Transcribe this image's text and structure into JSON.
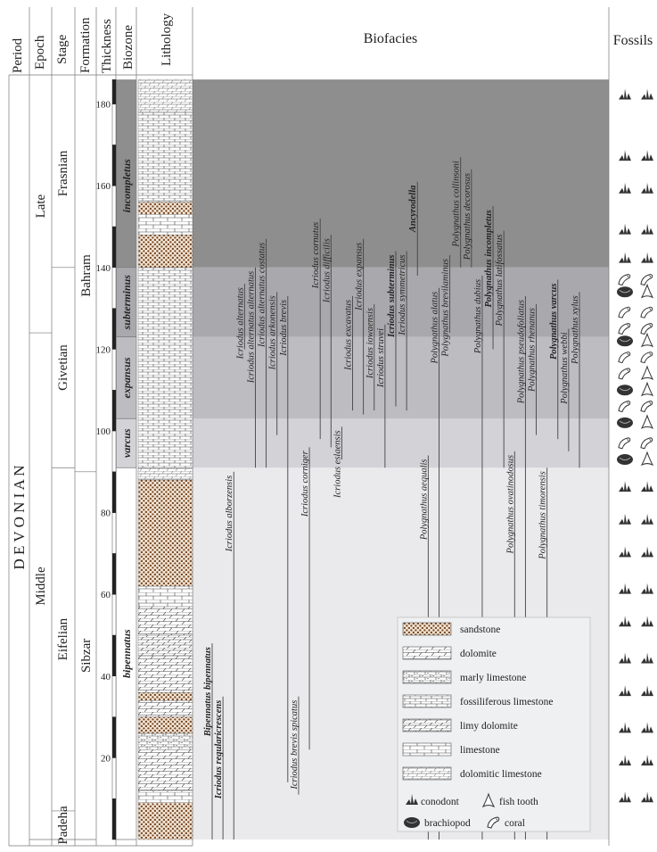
{
  "headers": {
    "period": "Period",
    "epoch": "Epoch",
    "stage": "Stage",
    "formation": "Formation",
    "thickness": "Thickness",
    "biozone": "Biozone",
    "lithology": "Lithology",
    "biofacies": "Biofacies",
    "fossils": "Fossils"
  },
  "period": "D E V O N I A N",
  "epochs": [
    {
      "name": "Late",
      "from": 124,
      "to": 186
    },
    {
      "name": "Middle",
      "from": 0,
      "to": 124
    }
  ],
  "stages": [
    {
      "name": "Frasnian",
      "from": 140,
      "to": 186
    },
    {
      "name": "Givetian",
      "from": 91,
      "to": 140
    },
    {
      "name": "Eifelian",
      "from": 7,
      "to": 91
    },
    {
      "name": "Padeha",
      "from": 0,
      "to": 7
    }
  ],
  "formations": [
    {
      "name": "Bahram",
      "from": 90,
      "to": 186
    },
    {
      "name": "Sibzar",
      "from": 0,
      "to": 90
    }
  ],
  "thickness_ticks": [
    20,
    40,
    60,
    80,
    100,
    120,
    140,
    160,
    180
  ],
  "biozones": [
    {
      "name": "incompletus",
      "from": 140,
      "to": 180
    },
    {
      "name": "subterminus",
      "from": 123,
      "to": 140
    },
    {
      "name": "expansus",
      "from": 103,
      "to": 123
    },
    {
      "name": "varcus",
      "from": 91,
      "to": 103
    },
    {
      "name": "bipennatus",
      "from": 0,
      "to": 91
    }
  ],
  "lithology_units": [
    {
      "type": "sandstone",
      "from": 0,
      "to": 9
    },
    {
      "type": "limestone",
      "from": 9,
      "to": 12
    },
    {
      "type": "dolomite",
      "from": 12,
      "to": 22
    },
    {
      "type": "marly limestone",
      "from": 22,
      "to": 26
    },
    {
      "type": "sandstone",
      "from": 26,
      "to": 30
    },
    {
      "type": "dolomite",
      "from": 30,
      "to": 34
    },
    {
      "type": "sandstone",
      "from": 34,
      "to": 36
    },
    {
      "type": "dolomite",
      "from": 36,
      "to": 45
    },
    {
      "type": "limy dolomite",
      "from": 45,
      "to": 50
    },
    {
      "type": "dolomite",
      "from": 50,
      "to": 57
    },
    {
      "type": "limestone",
      "from": 57,
      "to": 62
    },
    {
      "type": "sandstone",
      "from": 62,
      "to": 88
    },
    {
      "type": "dolomitic limestone",
      "from": 88,
      "to": 91
    },
    {
      "type": "fossiliferous limestone",
      "from": 91,
      "to": 140
    },
    {
      "type": "sandstone",
      "from": 140,
      "to": 148
    },
    {
      "type": "limestone",
      "from": 148,
      "to": 153
    },
    {
      "type": "sandstone",
      "from": 153,
      "to": 156
    },
    {
      "type": "fossiliferous limestone",
      "from": 156,
      "to": 178
    },
    {
      "type": "dolomitic limestone",
      "from": 178,
      "to": 186
    }
  ],
  "taxa": [
    {
      "name": "Bipennatus bipennatus",
      "from": 0,
      "to": 48,
      "bold": true
    },
    {
      "name": "Icriodus regularicrescens",
      "from": 0,
      "to": 35,
      "bold": true
    },
    {
      "name": "Icriodus alborzensis",
      "from": 0,
      "to": 90
    },
    {
      "name": "Icriodus alternatus",
      "from": 120,
      "to": 136
    },
    {
      "name": "Icriodus alternatus alternatus",
      "from": 91,
      "to": 140
    },
    {
      "name": "Icriodus alternatus costatus",
      "from": 91,
      "to": 147
    },
    {
      "name": "Icriodus arkonensis",
      "from": 99,
      "to": 134
    },
    {
      "name": "Icriodus brevis",
      "from": 14,
      "to": 133
    },
    {
      "name": "Icriodus brevis spicatus",
      "from": 11,
      "to": 35
    },
    {
      "name": "Icriodus corniger",
      "from": 22,
      "to": 96
    },
    {
      "name": "Icriodus cornutus",
      "from": 98,
      "to": 152
    },
    {
      "name": "Icriodus difficilis",
      "from": 96,
      "to": 148
    },
    {
      "name": "Icriodus eslaensis",
      "from": 93,
      "to": 101
    },
    {
      "name": "Icriodus excavatus",
      "from": 105,
      "to": 133
    },
    {
      "name": "Icriodus expansus",
      "from": 104,
      "to": 147
    },
    {
      "name": "Icriodus iowaensis",
      "from": 105,
      "to": 131
    },
    {
      "name": "Icriodus struvei",
      "from": 91,
      "to": 126
    },
    {
      "name": "Icriodus subterminus",
      "from": 106,
      "to": 144,
      "bold": true
    },
    {
      "name": "Icriodus symmetricus",
      "from": 105,
      "to": 144
    },
    {
      "name": "Ancyrodella",
      "from": 138,
      "to": 161,
      "bold": true
    },
    {
      "name": "Polygnathus aequalis",
      "from": 0,
      "to": 94
    },
    {
      "name": "Polygnathus alatus",
      "from": 0,
      "to": 135
    },
    {
      "name": "Polygnathus brevilaminus",
      "from": 124,
      "to": 143
    },
    {
      "name": "Polygnathus collinsoni",
      "from": 140,
      "to": 167
    },
    {
      "name": "Polygnathus decorosus",
      "from": 140,
      "to": 164
    },
    {
      "name": "Polygnathus dubius",
      "from": 0,
      "to": 138
    },
    {
      "name": "Polygnathus incompletus",
      "from": 120,
      "to": 155,
      "bold": true
    },
    {
      "name": "Polygnathus latifossatus",
      "from": 91,
      "to": 149
    },
    {
      "name": "Polygnathus ovatinodosus",
      "from": 0,
      "to": 95
    },
    {
      "name": "Polygnathus pseudofoliatus",
      "from": 0,
      "to": 133
    },
    {
      "name": "Polygnathus rhenanus",
      "from": 99,
      "to": 131
    },
    {
      "name": "Polygnathus timorensis",
      "from": 0,
      "to": 91
    },
    {
      "name": "Polygnathus varcus",
      "from": 98,
      "to": 137,
      "bold": true
    },
    {
      "name": "Polygnathus webbi",
      "from": 95,
      "to": 125
    },
    {
      "name": "Polygnathus xylus",
      "from": 91,
      "to": 134
    }
  ],
  "fossil_rows": [
    {
      "level": 182,
      "types": [
        "conodont",
        "conodont"
      ]
    },
    {
      "level": 167,
      "types": [
        "conodont",
        "conodont"
      ]
    },
    {
      "level": 159,
      "types": [
        "conodont",
        "conodont"
      ]
    },
    {
      "level": 149,
      "types": [
        "conodont",
        "conodont"
      ]
    },
    {
      "level": 142,
      "types": [
        "conodont",
        "conodont"
      ]
    },
    {
      "level": 137,
      "types": [
        "coral",
        "coral"
      ]
    },
    {
      "level": 134,
      "types": [
        "brachiopod",
        "fish tooth"
      ]
    },
    {
      "level": 129,
      "types": [
        "coral",
        "coral"
      ]
    },
    {
      "level": 125,
      "types": [
        "coral",
        "coral"
      ]
    },
    {
      "level": 122,
      "types": [
        "brachiopod",
        "fish tooth"
      ]
    },
    {
      "level": 118,
      "types": [
        "coral",
        "coral"
      ]
    },
    {
      "level": 114,
      "types": [
        "coral",
        "fish tooth"
      ]
    },
    {
      "level": 110,
      "types": [
        "brachiopod",
        "fish tooth"
      ]
    },
    {
      "level": 106,
      "types": [
        "coral",
        "coral"
      ]
    },
    {
      "level": 102,
      "types": [
        "brachiopod",
        "fish tooth"
      ]
    },
    {
      "level": 97,
      "types": [
        "coral",
        "coral"
      ]
    },
    {
      "level": 93,
      "types": [
        "brachiopod",
        "fish tooth"
      ]
    },
    {
      "level": 86,
      "types": [
        "conodont",
        "conodont"
      ]
    },
    {
      "level": 78,
      "types": [
        "conodont",
        "conodont"
      ]
    },
    {
      "level": 70,
      "types": [
        "conodont",
        "conodont"
      ]
    },
    {
      "level": 61,
      "types": [
        "conodont",
        "conodont"
      ]
    },
    {
      "level": 53,
      "types": [
        "conodont",
        "conodont"
      ]
    },
    {
      "level": 44,
      "types": [
        "conodont",
        "conodont"
      ]
    },
    {
      "level": 36,
      "types": [
        "conodont",
        "conodont"
      ]
    },
    {
      "level": 27,
      "types": [
        "conodont",
        "conodont"
      ]
    },
    {
      "level": 19,
      "types": [
        "conodont",
        "conodont"
      ]
    },
    {
      "level": 10,
      "types": [
        "conodont",
        "conodont"
      ]
    }
  ],
  "legend_lithology": [
    {
      "type": "sandstone",
      "label": "sandstone"
    },
    {
      "type": "dolomite",
      "label": "dolomite"
    },
    {
      "type": "marly limestone",
      "label": "marly limestone"
    },
    {
      "type": "fossiliferous limestone",
      "label": "fossiliferous limestone"
    },
    {
      "type": "limy dolomite",
      "label": "limy dolomite"
    },
    {
      "type": "limestone",
      "label": "limestone"
    },
    {
      "type": "dolomitic limestone",
      "label": "dolomitic limestone"
    }
  ],
  "legend_fossils": [
    {
      "type": "conodont",
      "label": "conodont"
    },
    {
      "type": "fish tooth",
      "label": "fish tooth"
    },
    {
      "type": "brachiopod",
      "label": "brachiopod"
    },
    {
      "type": "coral",
      "label": "coral"
    }
  ],
  "colors": {
    "late_band": "#8e8e8e",
    "subterminus_band": "#a9a9ad",
    "expansus_band": "#bdbdc1",
    "varcus_band": "#d3d3d7",
    "lower_band": "#eaeaed",
    "sand_dot": "#7a4a28",
    "sand_bg": "#f3e6d6"
  }
}
